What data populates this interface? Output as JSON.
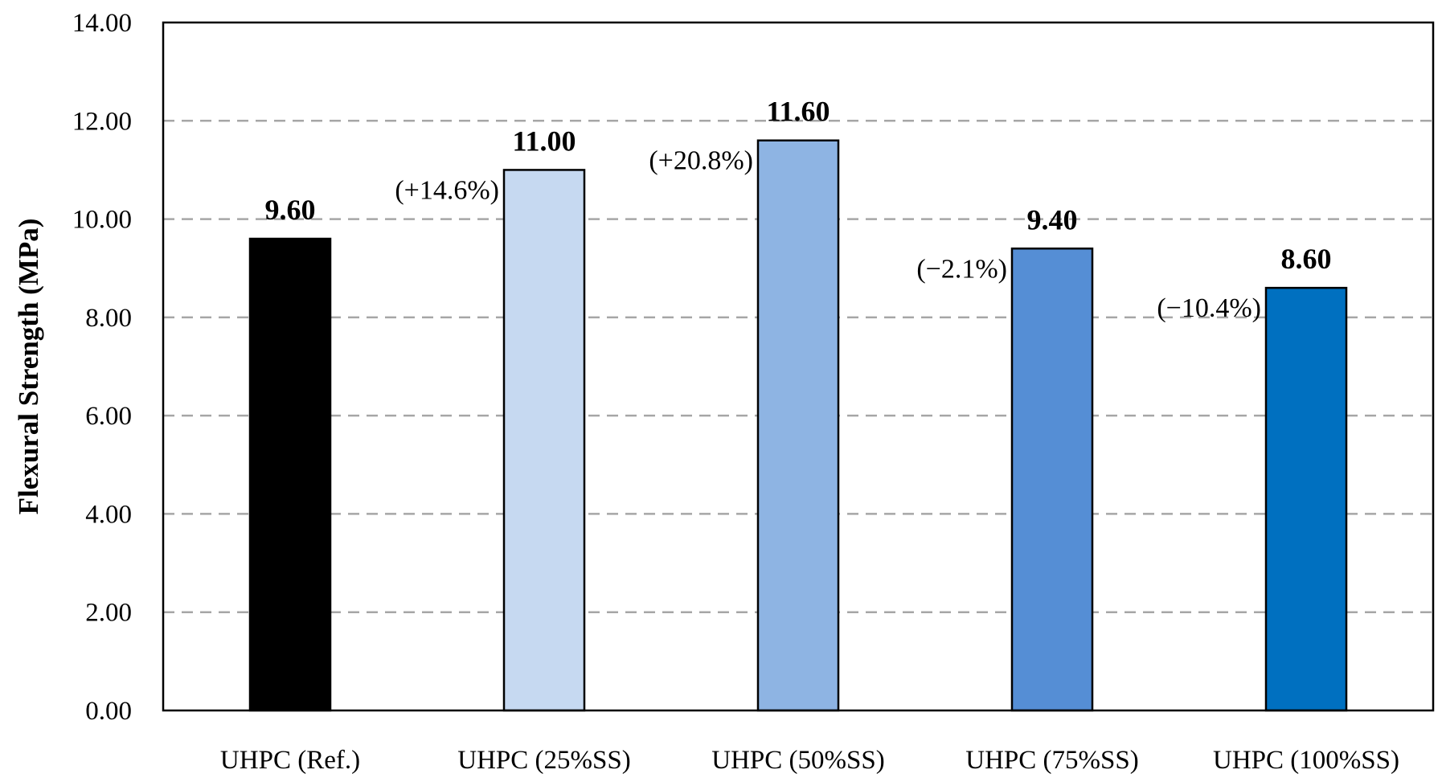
{
  "chart_data": {
    "type": "bar",
    "ylabel": "Flexural Strength (MPa)",
    "xlabel": "",
    "ylim": [
      0,
      14
    ],
    "y_tick_step": 2,
    "y_tick_labels": [
      "0.00",
      "2.00",
      "4.00",
      "6.00",
      "8.00",
      "10.00",
      "12.00",
      "14.00"
    ],
    "grid": "horizontal dashed",
    "legend": "none",
    "categories": [
      "UHPC (Ref.)",
      "UHPC (25%SS)",
      "UHPC (50%SS)",
      "UHPC (75%SS)",
      "UHPC (100%SS)"
    ],
    "values": [
      9.6,
      11.0,
      11.6,
      9.4,
      8.6
    ],
    "value_labels": [
      "9.60",
      "11.00",
      "11.60",
      "9.40",
      "8.60"
    ],
    "change_labels": [
      "",
      "(+14.6%)",
      "(+20.8%)",
      "(−2.1%)",
      "(−10.4%)"
    ],
    "colors": [
      "#000000",
      "#c6d9f1",
      "#8eb4e3",
      "#558ed5",
      "#0070c0"
    ]
  }
}
